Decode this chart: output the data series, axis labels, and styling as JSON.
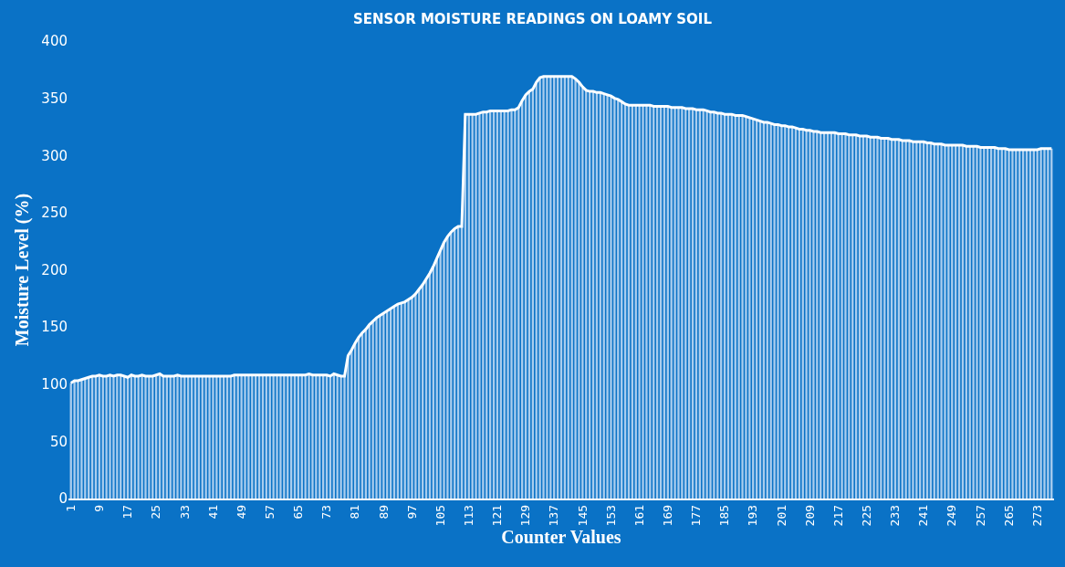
{
  "chart_data": {
    "type": "bar",
    "title": "SENSOR MOISTURE READINGS ON LOAMY SOIL",
    "xlabel": "Counter Values",
    "ylabel": "Moisture Level (%)",
    "categories": [
      "1",
      null,
      null,
      null,
      null,
      null,
      null,
      null,
      "9",
      null,
      null,
      null,
      null,
      null,
      null,
      null,
      "17",
      null,
      null,
      null,
      null,
      null,
      null,
      null,
      "25",
      null,
      null,
      null,
      null,
      null,
      null,
      null,
      "33",
      null,
      null,
      null,
      null,
      null,
      null,
      null,
      "41",
      null,
      null,
      null,
      null,
      null,
      null,
      null,
      "49",
      null,
      null,
      null,
      null,
      null,
      null,
      null,
      "57",
      null,
      null,
      null,
      null,
      null,
      null,
      null,
      "65",
      null,
      null,
      null,
      null,
      null,
      null,
      null,
      "73",
      null,
      null,
      null,
      null,
      null,
      null,
      null,
      "81",
      null,
      null,
      null,
      null,
      null,
      null,
      null,
      "89",
      null,
      null,
      null,
      null,
      null,
      null,
      null,
      "97",
      null,
      null,
      null,
      null,
      null,
      null,
      null,
      "105",
      null,
      null,
      null,
      null,
      null,
      null,
      null,
      "113",
      null,
      null,
      null,
      null,
      null,
      null,
      null,
      "121",
      null,
      null,
      null,
      null,
      null,
      null,
      null,
      "129",
      null,
      null,
      null,
      null,
      null,
      null,
      null,
      "137",
      null,
      null,
      null,
      null,
      null,
      null,
      null,
      "145",
      null,
      null,
      null,
      null,
      null,
      null,
      null,
      "153",
      null,
      null,
      null,
      null,
      null,
      null,
      null,
      "161",
      null,
      null,
      null,
      null,
      null,
      null,
      null,
      "169",
      null,
      null,
      null,
      null,
      null,
      null,
      null,
      "177",
      null,
      null,
      null,
      null,
      null,
      null,
      null,
      "185",
      null,
      null,
      null,
      null,
      null,
      null,
      null,
      "193",
      null,
      null,
      null,
      null,
      null,
      null,
      null,
      "201",
      null,
      null,
      null,
      null,
      null,
      null,
      null,
      "209",
      null,
      null,
      null,
      null,
      null,
      null,
      null,
      "217",
      null,
      null,
      null,
      null,
      null,
      null,
      null,
      "225",
      null,
      null,
      null,
      null,
      null,
      null,
      null,
      "233",
      null,
      null,
      null,
      null,
      null,
      null,
      null,
      "241",
      null,
      null,
      null,
      null,
      null,
      null,
      null,
      "249",
      null,
      null,
      null,
      null,
      null,
      null,
      null,
      "257",
      null,
      null,
      null,
      null,
      null,
      null,
      null,
      "265",
      null,
      null,
      null,
      null,
      null,
      null,
      null,
      "273",
      null,
      null,
      null,
      null
    ],
    "series": [
      {
        "color": "#a9cdee",
        "values": [
          101,
          103,
          103,
          104,
          105,
          106,
          107,
          107,
          108,
          107,
          107,
          108,
          107,
          108,
          108,
          107,
          106,
          108,
          107,
          107,
          108,
          107,
          107,
          107,
          108,
          109,
          107,
          107,
          107,
          107,
          108,
          107,
          107,
          107,
          107,
          107,
          107,
          107,
          107,
          107,
          107,
          107,
          107,
          107,
          107,
          107,
          108,
          108,
          108,
          108,
          108,
          108,
          108,
          108,
          108,
          108,
          108,
          108,
          108,
          108,
          108,
          108,
          108,
          108,
          108,
          108,
          108,
          109,
          108,
          108,
          108,
          108,
          108,
          107,
          109,
          108,
          107,
          107,
          125,
          130,
          136,
          141,
          145,
          148,
          152,
          155,
          158,
          160,
          162,
          164,
          166,
          168,
          170,
          171,
          172,
          174,
          176,
          179,
          183,
          187,
          192,
          197,
          203,
          210,
          217,
          224,
          229,
          233,
          236,
          238,
          238,
          336,
          336,
          336,
          336,
          337,
          338,
          338,
          339,
          339,
          339,
          339,
          339,
          339,
          340,
          340,
          342,
          348,
          353,
          356,
          358,
          364,
          368,
          369,
          369,
          369,
          369,
          369,
          369,
          369,
          369,
          369,
          367,
          364,
          360,
          357,
          356,
          356,
          355,
          355,
          354,
          353,
          352,
          350,
          349,
          347,
          345,
          344,
          344,
          344,
          344,
          344,
          344,
          344,
          343,
          343,
          343,
          343,
          343,
          342,
          342,
          342,
          342,
          341,
          341,
          341,
          340,
          340,
          340,
          339,
          338,
          338,
          337,
          337,
          336,
          336,
          336,
          335,
          335,
          335,
          334,
          333,
          332,
          331,
          330,
          329,
          329,
          328,
          327,
          327,
          326,
          326,
          325,
          325,
          324,
          323,
          323,
          322,
          322,
          321,
          321,
          320,
          320,
          320,
          320,
          320,
          319,
          319,
          319,
          318,
          318,
          318,
          317,
          317,
          317,
          316,
          316,
          316,
          315,
          315,
          315,
          314,
          314,
          314,
          313,
          313,
          313,
          312,
          312,
          312,
          312,
          311,
          311,
          310,
          310,
          310,
          309,
          309,
          309,
          309,
          309,
          309,
          308,
          308,
          308,
          308,
          307,
          307,
          307,
          307,
          307,
          306,
          306,
          306,
          305,
          305,
          305,
          305,
          305,
          305,
          305,
          305,
          305,
          306,
          306,
          306,
          306
        ]
      },
      {
        "type": "line",
        "color": "#ffffff",
        "values": [
          101,
          103,
          103,
          104,
          105,
          106,
          107,
          107,
          108,
          107,
          107,
          108,
          107,
          108,
          108,
          107,
          106,
          108,
          107,
          107,
          108,
          107,
          107,
          107,
          108,
          109,
          107,
          107,
          107,
          107,
          108,
          107,
          107,
          107,
          107,
          107,
          107,
          107,
          107,
          107,
          107,
          107,
          107,
          107,
          107,
          107,
          108,
          108,
          108,
          108,
          108,
          108,
          108,
          108,
          108,
          108,
          108,
          108,
          108,
          108,
          108,
          108,
          108,
          108,
          108,
          108,
          108,
          109,
          108,
          108,
          108,
          108,
          108,
          107,
          109,
          108,
          107,
          107,
          125,
          130,
          136,
          141,
          145,
          148,
          152,
          155,
          158,
          160,
          162,
          164,
          166,
          168,
          170,
          171,
          172,
          174,
          176,
          179,
          183,
          187,
          192,
          197,
          203,
          210,
          217,
          224,
          229,
          233,
          236,
          238,
          238,
          336,
          336,
          336,
          336,
          337,
          338,
          338,
          339,
          339,
          339,
          339,
          339,
          339,
          340,
          340,
          342,
          348,
          353,
          356,
          358,
          364,
          368,
          369,
          369,
          369,
          369,
          369,
          369,
          369,
          369,
          369,
          367,
          364,
          360,
          357,
          356,
          356,
          355,
          355,
          354,
          353,
          352,
          350,
          349,
          347,
          345,
          344,
          344,
          344,
          344,
          344,
          344,
          344,
          343,
          343,
          343,
          343,
          343,
          342,
          342,
          342,
          342,
          341,
          341,
          341,
          340,
          340,
          340,
          339,
          338,
          338,
          337,
          337,
          336,
          336,
          336,
          335,
          335,
          335,
          334,
          333,
          332,
          331,
          330,
          329,
          329,
          328,
          327,
          327,
          326,
          326,
          325,
          325,
          324,
          323,
          323,
          322,
          322,
          321,
          321,
          320,
          320,
          320,
          320,
          320,
          319,
          319,
          319,
          318,
          318,
          318,
          317,
          317,
          317,
          316,
          316,
          316,
          315,
          315,
          315,
          314,
          314,
          314,
          313,
          313,
          313,
          312,
          312,
          312,
          312,
          311,
          311,
          310,
          310,
          310,
          309,
          309,
          309,
          309,
          309,
          309,
          308,
          308,
          308,
          308,
          307,
          307,
          307,
          307,
          307,
          306,
          306,
          306,
          305,
          305,
          305,
          305,
          305,
          305,
          305,
          305,
          305,
          306,
          306,
          306,
          306
        ]
      }
    ],
    "ylim": [
      0,
      400
    ],
    "yticks": [
      0,
      50,
      100,
      150,
      200,
      250,
      300,
      350,
      400
    ],
    "grid": false
  }
}
